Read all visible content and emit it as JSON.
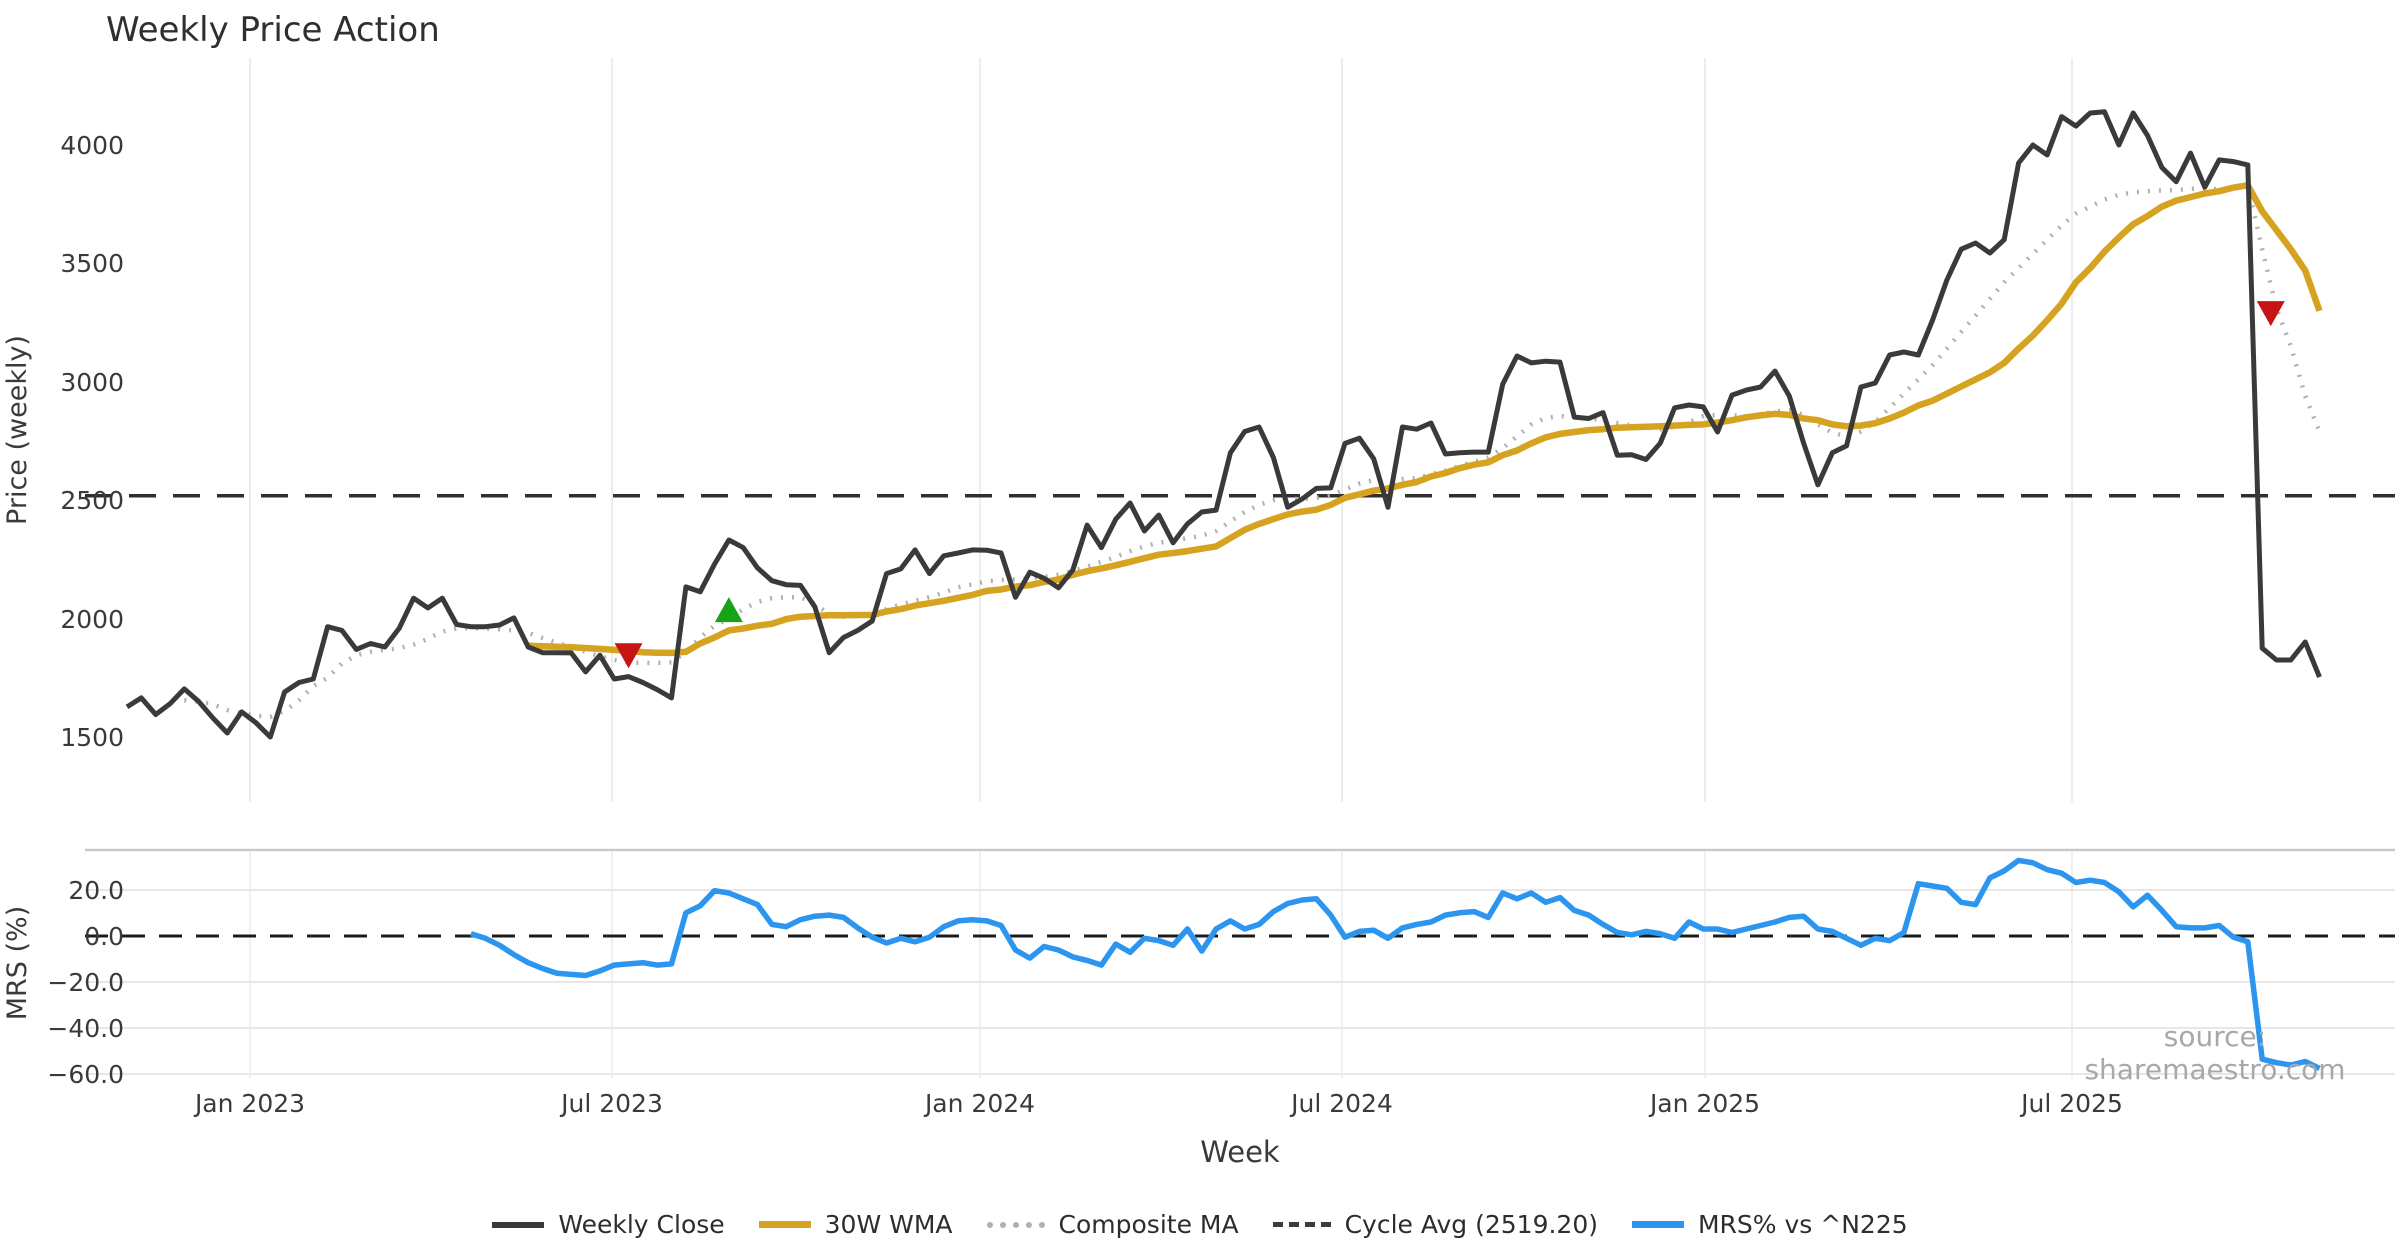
{
  "title": "Weekly Price Action",
  "source_note": "source: sharemaestro.com",
  "axes": {
    "x": {
      "label": "Week",
      "ticks": [
        "Jan 2023",
        "Jul 2023",
        "Jan 2024",
        "Jul 2024",
        "Jan 2025",
        "Jul 2025"
      ]
    },
    "price": {
      "label": "Price (weekly)",
      "ticks": [
        "4000",
        "3500",
        "3000",
        "2500",
        "2000",
        "1500"
      ]
    },
    "mrs": {
      "label": "MRS (%)",
      "ticks": [
        "20.0",
        "0.0",
        "−20.0",
        "−40.0",
        "−60.0"
      ]
    }
  },
  "legend": [
    {
      "label": "Weekly Close",
      "color": "#3a3a3a",
      "style": "solid"
    },
    {
      "label": "30W WMA",
      "color": "#d6a321",
      "style": "solid"
    },
    {
      "label": "Composite MA",
      "color": "#b0b0b0",
      "style": "dotted"
    },
    {
      "label": "Cycle Avg (2519.20)",
      "color": "#3c3c3c",
      "style": "dashed"
    },
    {
      "label": "MRS% vs ^N225",
      "color": "#2b95ef",
      "style": "solid"
    }
  ],
  "chart_data": {
    "type": "line",
    "title": "Weekly Price Action",
    "xlabel": "Week",
    "x_unit": "week",
    "x_tick_labels": [
      "Jan 2023",
      "Jul 2023",
      "Jan 2024",
      "Jul 2024",
      "Jan 2025",
      "Jul 2025"
    ],
    "weeks_total": 154,
    "panels": [
      {
        "name": "price",
        "ylabel": "Price (weekly)",
        "ylim": [
          1380,
          4260
        ],
        "yticks": [
          4000,
          3500,
          3000,
          2500,
          2000,
          1500
        ],
        "cycle_avg": 2519.2,
        "series": [
          {
            "name": "Weekly Close",
            "color": "#3a3a3a",
            "style": "solid",
            "start_week": 0,
            "values": [
              1627,
              1665,
              1595,
              1640,
              1703,
              1650,
              1580,
              1517,
              1606,
              1560,
              1500,
              1690,
              1730,
              1745,
              1966,
              1950,
              1870,
              1895,
              1880,
              1960,
              2086,
              2045,
              2086,
              1975,
              1966,
              1966,
              1973,
              2003,
              1880,
              1856,
              1856,
              1855,
              1775,
              1845,
              1745,
              1755,
              1730,
              1700,
              1665,
              2134,
              2113,
              2230,
              2332,
              2300,
              2214,
              2160,
              2143,
              2140,
              2050,
              1856,
              1920,
              1950,
              1990,
              2190,
              2210,
              2290,
              2190,
              2265,
              2277,
              2290,
              2289,
              2277,
              2090,
              2196,
              2170,
              2130,
              2205,
              2395,
              2300,
              2420,
              2488,
              2370,
              2437,
              2320,
              2400,
              2450,
              2458,
              2700,
              2790,
              2809,
              2680,
              2470,
              2505,
              2550,
              2552,
              2740,
              2762,
              2675,
              2470,
              2809,
              2800,
              2826,
              2695,
              2700,
              2703,
              2703,
              2990,
              3109,
              3080,
              3087,
              3083,
              2851,
              2845,
              2870,
              2690,
              2692,
              2672,
              2741,
              2890,
              2902,
              2894,
              2788,
              2944,
              2965,
              2978,
              3045,
              2940,
              2741,
              2565,
              2700,
              2730,
              2978,
              2995,
              3113,
              3126,
              3113,
              3261,
              3430,
              3560,
              3586,
              3544,
              3600,
              3924,
              4000,
              3958,
              4120,
              4080,
              4135,
              4140,
              4000,
              4135,
              4040,
              3905,
              3845,
              3966,
              3822,
              3937,
              3930,
              3916,
              1875,
              1825,
              1825,
              1901,
              1753
            ]
          },
          {
            "name": "30W WMA",
            "color": "#d6a321",
            "style": "solid",
            "start_week": 28,
            "values": [
              1885,
              1883,
              1881,
              1879,
              1876,
              1872,
              1868,
              1863,
              1858,
              1856,
              1855,
              1860,
              1895,
              1920,
              1950,
              1958,
              1970,
              1978,
              1998,
              2008,
              2011,
              2014,
              2014,
              2015,
              2015,
              2030,
              2040,
              2055,
              2065,
              2075,
              2088,
              2100,
              2117,
              2123,
              2135,
              2141,
              2155,
              2165,
              2185,
              2200,
              2212,
              2225,
              2240,
              2255,
              2270,
              2277,
              2285,
              2295,
              2305,
              2340,
              2375,
              2400,
              2420,
              2440,
              2452,
              2460,
              2480,
              2510,
              2525,
              2540,
              2550,
              2565,
              2577,
              2600,
              2615,
              2635,
              2650,
              2660,
              2690,
              2710,
              2740,
              2765,
              2780,
              2788,
              2796,
              2800,
              2806,
              2808,
              2810,
              2812,
              2815,
              2818,
              2820,
              2828,
              2838,
              2850,
              2858,
              2865,
              2860,
              2845,
              2838,
              2820,
              2812,
              2815,
              2825,
              2845,
              2870,
              2900,
              2920,
              2950,
              2980,
              3010,
              3040,
              3080,
              3140,
              3195,
              3260,
              3330,
              3420,
              3480,
              3550,
              3610,
              3665,
              3700,
              3740,
              3765,
              3780,
              3795,
              3805,
              3820,
              3830,
              3720,
              3640,
              3560,
              3470,
              3300
            ]
          },
          {
            "name": "Composite MA",
            "color": "#b0b0b0",
            "style": "dotted",
            "start_week": 4,
            "values": [
              1656,
              1650,
              1638,
              1614,
              1600,
              1590,
              1585,
              1610,
              1655,
              1715,
              1750,
              1810,
              1845,
              1860,
              1868,
              1875,
              1890,
              1915,
              1945,
              1958,
              1960,
              1958,
              1955,
              1950,
              1940,
              1918,
              1898,
              1880,
              1860,
              1840,
              1825,
              1815,
              1812,
              1813,
              1815,
              1860,
              1920,
              1970,
              2000,
              2040,
              2070,
              2086,
              2090,
              2091,
              2060,
              2020,
              2008,
              2010,
              2014,
              2040,
              2060,
              2075,
              2091,
              2110,
              2132,
              2145,
              2158,
              2163,
              2165,
              2170,
              2176,
              2185,
              2200,
              2220,
              2240,
              2260,
              2285,
              2305,
              2320,
              2330,
              2340,
              2350,
              2370,
              2410,
              2450,
              2480,
              2500,
              2505,
              2505,
              2510,
              2520,
              2545,
              2570,
              2585,
              2580,
              2590,
              2593,
              2610,
              2625,
              2645,
              2662,
              2680,
              2720,
              2770,
              2820,
              2848,
              2855,
              2852,
              2845,
              2838,
              2826,
              2815,
              2808,
              2800,
              2810,
              2830,
              2855,
              2860,
              2858,
              2855,
              2862,
              2875,
              2880,
              2860,
              2820,
              2785,
              2770,
              2790,
              2830,
              2890,
              2950,
              3010,
              3070,
              3140,
              3210,
              3280,
              3350,
              3420,
              3480,
              3540,
              3600,
              3660,
              3710,
              3740,
              3770,
              3790,
              3800,
              3805,
              3808,
              3810,
              3815,
              3818,
              3812,
              3820,
              3830,
              3560,
              3310,
              3150,
              2940,
              2790
            ]
          }
        ],
        "markers": [
          {
            "type": "sell",
            "week": 35,
            "price": 1845,
            "color": "#c41414"
          },
          {
            "type": "buy",
            "week": 42,
            "price": 2036,
            "color": "#17a317"
          },
          {
            "type": "sell",
            "week": 149.6,
            "price": 3290,
            "color": "#c41414"
          }
        ]
      },
      {
        "name": "mrs",
        "ylabel": "MRS (%)",
        "ylim": [
          -65,
          37
        ],
        "yticks": [
          20,
          0,
          -20,
          -40,
          -60
        ],
        "zero_line": 0,
        "series": [
          {
            "name": "MRS% vs ^N225",
            "color": "#2b95ef",
            "style": "solid",
            "start_week": 24,
            "values": [
              1,
              -1,
              -4,
              -8,
              -11.5,
              -14,
              -16,
              -16.5,
              -17,
              -15,
              -12.5,
              -12,
              -11.5,
              -12.5,
              -12,
              10,
              13,
              19.5,
              18.5,
              16,
              13.5,
              5,
              4,
              7,
              8.5,
              9,
              8,
              3.5,
              -0.5,
              -3,
              -1,
              -2.5,
              -0.5,
              4,
              6.5,
              7,
              6.5,
              4.5,
              -6,
              -9.5,
              -4.5,
              -6,
              -9,
              -10.5,
              -12.5,
              -3.5,
              -7,
              -1,
              -2,
              -4,
              3,
              -6.5,
              3,
              6.5,
              3,
              5,
              10.5,
              14,
              15.5,
              16,
              9,
              -0.5,
              2,
              2.5,
              -1,
              3.5,
              5,
              6,
              9,
              10,
              10.5,
              8,
              18.5,
              16,
              18.5,
              14.5,
              16.5,
              11,
              9,
              5,
              1.5,
              0.5,
              2,
              1,
              -1,
              6,
              3,
              3,
              1.5,
              3,
              4.5,
              6,
              8,
              8.5,
              3,
              2,
              -1,
              -4,
              -1,
              -2,
              1.5,
              22.5,
              21.5,
              20.5,
              14.5,
              13.5,
              25,
              28,
              32.5,
              31.5,
              28.5,
              27,
              23,
              24,
              23,
              19,
              12.5,
              17.5,
              11,
              4,
              3.5,
              3.5,
              4.5,
              -0.5,
              -2.5,
              -53,
              -54.5,
              -55.5,
              -54,
              -57
            ]
          }
        ]
      }
    ]
  }
}
